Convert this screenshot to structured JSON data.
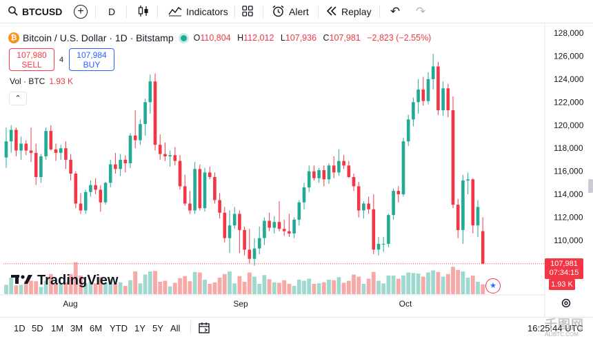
{
  "toolbar": {
    "symbol": "BTCUSD",
    "add_symbol": "+",
    "interval": "D",
    "indicators": "Indicators",
    "alert": "Alert",
    "replay": "Replay",
    "undo": "↶",
    "redo": "↷"
  },
  "legend": {
    "coin_glyph": "₿",
    "title": "Bitcoin / U.S. Dollar · 1D · Bitstamp",
    "o_label": "O",
    "o_value": "110,804",
    "h_label": "H",
    "h_value": "112,012",
    "l_label": "L",
    "l_value": "107,936",
    "c_label": "C",
    "c_value": "107,981",
    "change": "−2,823 (−2.55%)"
  },
  "trade": {
    "sell_price": "107,980",
    "sell_label": "SELL",
    "spread": "4",
    "buy_price": "107,984",
    "buy_label": "BUY"
  },
  "volume": {
    "label": "Vol · BTC",
    "value": "1.93 K"
  },
  "collapse_glyph": "⌃",
  "watermark": "TradingView",
  "price_badge": {
    "price": "107,981",
    "countdown": "07:34:15"
  },
  "vol_badge": "1.93 K",
  "price_axis": [
    "128,000",
    "126,000",
    "124,000",
    "122,000",
    "120,000",
    "118,000",
    "116,000",
    "114,000",
    "112,000",
    "110,000",
    "108,000"
  ],
  "time_axis": [
    "Aug",
    "Sep",
    "Oct"
  ],
  "ranges": [
    "1D",
    "5D",
    "1M",
    "3M",
    "6M",
    "YTD",
    "1Y",
    "5Y",
    "All"
  ],
  "clock": "16:25:44 UTC",
  "site_watermark": {
    "main": "千图网",
    "sub": "ALIBTC.COM"
  },
  "colors": {
    "up": "#22ab94",
    "down": "#f23645",
    "up_vol": "#9fd8cf",
    "down_vol": "#f7a9a7",
    "accent": "#2962ff"
  },
  "chart_data": {
    "type": "candlestick",
    "ylim": [
      107000,
      128500
    ],
    "candles": [
      {
        "o": 117200,
        "h": 119800,
        "l": 116300,
        "c": 118600
      },
      {
        "o": 118600,
        "h": 120000,
        "l": 117600,
        "c": 119600
      },
      {
        "o": 119600,
        "h": 119800,
        "l": 117300,
        "c": 117800
      },
      {
        "o": 117800,
        "h": 119000,
        "l": 117000,
        "c": 118400
      },
      {
        "o": 118400,
        "h": 118700,
        "l": 117400,
        "c": 117800
      },
      {
        "o": 117800,
        "h": 119800,
        "l": 116800,
        "c": 117600
      },
      {
        "o": 117600,
        "h": 118400,
        "l": 114800,
        "c": 115500
      },
      {
        "o": 115500,
        "h": 117500,
        "l": 115000,
        "c": 117300
      },
      {
        "o": 117300,
        "h": 119800,
        "l": 117000,
        "c": 119500
      },
      {
        "o": 119500,
        "h": 120000,
        "l": 117800,
        "c": 117900
      },
      {
        "o": 117900,
        "h": 118400,
        "l": 116900,
        "c": 117600
      },
      {
        "o": 117600,
        "h": 118300,
        "l": 117000,
        "c": 118000
      },
      {
        "o": 118000,
        "h": 118600,
        "l": 116200,
        "c": 117000
      },
      {
        "o": 117000,
        "h": 117500,
        "l": 115200,
        "c": 115800
      },
      {
        "o": 115800,
        "h": 116000,
        "l": 112800,
        "c": 113200
      },
      {
        "o": 113200,
        "h": 114100,
        "l": 112300,
        "c": 112600
      },
      {
        "o": 112600,
        "h": 114400,
        "l": 112300,
        "c": 114200
      },
      {
        "o": 114200,
        "h": 115200,
        "l": 113800,
        "c": 114800
      },
      {
        "o": 114800,
        "h": 115400,
        "l": 114000,
        "c": 114400
      },
      {
        "o": 114400,
        "h": 114800,
        "l": 112500,
        "c": 113300
      },
      {
        "o": 113300,
        "h": 115100,
        "l": 113100,
        "c": 115000
      },
      {
        "o": 115000,
        "h": 117000,
        "l": 114600,
        "c": 116600
      },
      {
        "o": 116600,
        "h": 117600,
        "l": 115800,
        "c": 116200
      },
      {
        "o": 116200,
        "h": 117500,
        "l": 115600,
        "c": 117000
      },
      {
        "o": 117000,
        "h": 117400,
        "l": 115900,
        "c": 116700
      },
      {
        "o": 116700,
        "h": 119300,
        "l": 116300,
        "c": 119100
      },
      {
        "o": 119100,
        "h": 121300,
        "l": 118000,
        "c": 118700
      },
      {
        "o": 118700,
        "h": 120500,
        "l": 118300,
        "c": 120100
      },
      {
        "o": 120100,
        "h": 122300,
        "l": 119100,
        "c": 122000
      },
      {
        "o": 122000,
        "h": 124400,
        "l": 121000,
        "c": 123800
      },
      {
        "o": 123800,
        "h": 124500,
        "l": 117800,
        "c": 118300
      },
      {
        "o": 118300,
        "h": 119200,
        "l": 117000,
        "c": 117500
      },
      {
        "o": 117500,
        "h": 118500,
        "l": 116900,
        "c": 117300
      },
      {
        "o": 117300,
        "h": 117800,
        "l": 116400,
        "c": 117400
      },
      {
        "o": 117400,
        "h": 118100,
        "l": 116500,
        "c": 116900
      },
      {
        "o": 116900,
        "h": 117400,
        "l": 114400,
        "c": 114700
      },
      {
        "o": 114700,
        "h": 115700,
        "l": 113000,
        "c": 113200
      },
      {
        "o": 113200,
        "h": 114300,
        "l": 112300,
        "c": 112600
      },
      {
        "o": 112600,
        "h": 116800,
        "l": 112300,
        "c": 116200
      },
      {
        "o": 116200,
        "h": 116600,
        "l": 112600,
        "c": 112800
      },
      {
        "o": 112800,
        "h": 116300,
        "l": 112500,
        "c": 115900
      },
      {
        "o": 115900,
        "h": 116400,
        "l": 115300,
        "c": 115500
      },
      {
        "o": 115500,
        "h": 115900,
        "l": 113200,
        "c": 113500
      },
      {
        "o": 113500,
        "h": 114100,
        "l": 111900,
        "c": 112400
      },
      {
        "o": 112400,
        "h": 112900,
        "l": 109800,
        "c": 110200
      },
      {
        "o": 110200,
        "h": 112600,
        "l": 108900,
        "c": 111300
      },
      {
        "o": 111300,
        "h": 112900,
        "l": 111000,
        "c": 112300
      },
      {
        "o": 112300,
        "h": 112600,
        "l": 108900,
        "c": 110900
      },
      {
        "o": 110900,
        "h": 111200,
        "l": 108700,
        "c": 109200
      },
      {
        "o": 109200,
        "h": 111000,
        "l": 108000,
        "c": 108400
      },
      {
        "o": 108400,
        "h": 110200,
        "l": 107800,
        "c": 109300
      },
      {
        "o": 109300,
        "h": 111200,
        "l": 108800,
        "c": 110200
      },
      {
        "o": 110200,
        "h": 112000,
        "l": 109600,
        "c": 111700
      },
      {
        "o": 111700,
        "h": 112400,
        "l": 110800,
        "c": 111100
      },
      {
        "o": 111100,
        "h": 112100,
        "l": 110600,
        "c": 111600
      },
      {
        "o": 111600,
        "h": 113400,
        "l": 110800,
        "c": 111000
      },
      {
        "o": 111000,
        "h": 111800,
        "l": 110400,
        "c": 110800
      },
      {
        "o": 110800,
        "h": 112300,
        "l": 110300,
        "c": 110600
      },
      {
        "o": 110600,
        "h": 112000,
        "l": 110200,
        "c": 111800
      },
      {
        "o": 111800,
        "h": 113500,
        "l": 111300,
        "c": 113300
      },
      {
        "o": 113300,
        "h": 115000,
        "l": 112700,
        "c": 114600
      },
      {
        "o": 114600,
        "h": 116500,
        "l": 114200,
        "c": 116000
      },
      {
        "o": 116000,
        "h": 116500,
        "l": 115200,
        "c": 115400
      },
      {
        "o": 115400,
        "h": 116300,
        "l": 115000,
        "c": 116100
      },
      {
        "o": 116100,
        "h": 116500,
        "l": 114700,
        "c": 115300
      },
      {
        "o": 115300,
        "h": 116700,
        "l": 114900,
        "c": 116500
      },
      {
        "o": 116500,
        "h": 117300,
        "l": 115400,
        "c": 115900
      },
      {
        "o": 115900,
        "h": 117900,
        "l": 115600,
        "c": 116900
      },
      {
        "o": 116900,
        "h": 117400,
        "l": 116200,
        "c": 116500
      },
      {
        "o": 116500,
        "h": 116900,
        "l": 115400,
        "c": 115500
      },
      {
        "o": 115500,
        "h": 115800,
        "l": 114300,
        "c": 114700
      },
      {
        "o": 114700,
        "h": 115100,
        "l": 112000,
        "c": 112600
      },
      {
        "o": 112600,
        "h": 113400,
        "l": 111900,
        "c": 113200
      },
      {
        "o": 113200,
        "h": 113800,
        "l": 112300,
        "c": 112700
      },
      {
        "o": 112700,
        "h": 114000,
        "l": 108800,
        "c": 109200
      },
      {
        "o": 109200,
        "h": 110300,
        "l": 108700,
        "c": 109700
      },
      {
        "o": 109700,
        "h": 110300,
        "l": 109000,
        "c": 109700
      },
      {
        "o": 109700,
        "h": 112300,
        "l": 109400,
        "c": 112200
      },
      {
        "o": 112200,
        "h": 114500,
        "l": 111800,
        "c": 114300
      },
      {
        "o": 114300,
        "h": 114700,
        "l": 113300,
        "c": 114000
      },
      {
        "o": 114000,
        "h": 118900,
        "l": 113800,
        "c": 118600
      },
      {
        "o": 118600,
        "h": 120900,
        "l": 118200,
        "c": 120500
      },
      {
        "o": 120500,
        "h": 122400,
        "l": 119900,
        "c": 122000
      },
      {
        "o": 122000,
        "h": 124000,
        "l": 121000,
        "c": 123100
      },
      {
        "o": 123100,
        "h": 124200,
        "l": 121700,
        "c": 122100
      },
      {
        "o": 122100,
        "h": 124600,
        "l": 121800,
        "c": 124000
      },
      {
        "o": 124000,
        "h": 126200,
        "l": 123100,
        "c": 125100
      },
      {
        "o": 125100,
        "h": 125500,
        "l": 120900,
        "c": 121300
      },
      {
        "o": 121300,
        "h": 123800,
        "l": 120800,
        "c": 123200
      },
      {
        "o": 123200,
        "h": 123600,
        "l": 120700,
        "c": 121300
      },
      {
        "o": 121300,
        "h": 122500,
        "l": 112800,
        "c": 113100
      },
      {
        "o": 113100,
        "h": 113600,
        "l": 110200,
        "c": 110900
      },
      {
        "o": 110900,
        "h": 115700,
        "l": 109700,
        "c": 115200
      },
      {
        "o": 115200,
        "h": 115900,
        "l": 114000,
        "c": 115300
      },
      {
        "o": 115300,
        "h": 115400,
        "l": 110600,
        "c": 111300
      },
      {
        "o": 111300,
        "h": 113500,
        "l": 110300,
        "c": 112900
      },
      {
        "o": 110804,
        "h": 112012,
        "l": 107936,
        "c": 107981
      }
    ],
    "volume": [
      1.8,
      3.2,
      1.7,
      1.8,
      2.6,
      2.6,
      2.5,
      1.4,
      2.6,
      3.9,
      1.9,
      1.9,
      2.3,
      3.9,
      6.2,
      3.6,
      2.1,
      2.4,
      2.1,
      3.3,
      2.2,
      2.9,
      2.1,
      2.3,
      1.6,
      2.7,
      4.4,
      2.1,
      3.8,
      4.4,
      4.5,
      2.4,
      2.6,
      1.5,
      2.2,
      3.1,
      3.5,
      2.5,
      4.3,
      4.2,
      2.8,
      2.0,
      2.3,
      3.2,
      3.9,
      4.4,
      2.1,
      3.5,
      2.4,
      4.2,
      3.4,
      2.0,
      3.7,
      2.9,
      2.3,
      2.2,
      2.7,
      2.0,
      1.6,
      2.8,
      2.6,
      3.0,
      2.0,
      2.1,
      2.3,
      2.8,
      2.7,
      3.3,
      2.2,
      2.6,
      3.8,
      3.4,
      2.0,
      3.0,
      4.3,
      2.6,
      2.1,
      3.6,
      3.6,
      3.0,
      3.6,
      4.2,
      4.1,
      4.0,
      3.4,
      4.2,
      4.6,
      4.3,
      3.4,
      3.9,
      5.3,
      4.7,
      4.4,
      3.2,
      3.6,
      2.4,
      1.9
    ],
    "volume_max": 12
  }
}
